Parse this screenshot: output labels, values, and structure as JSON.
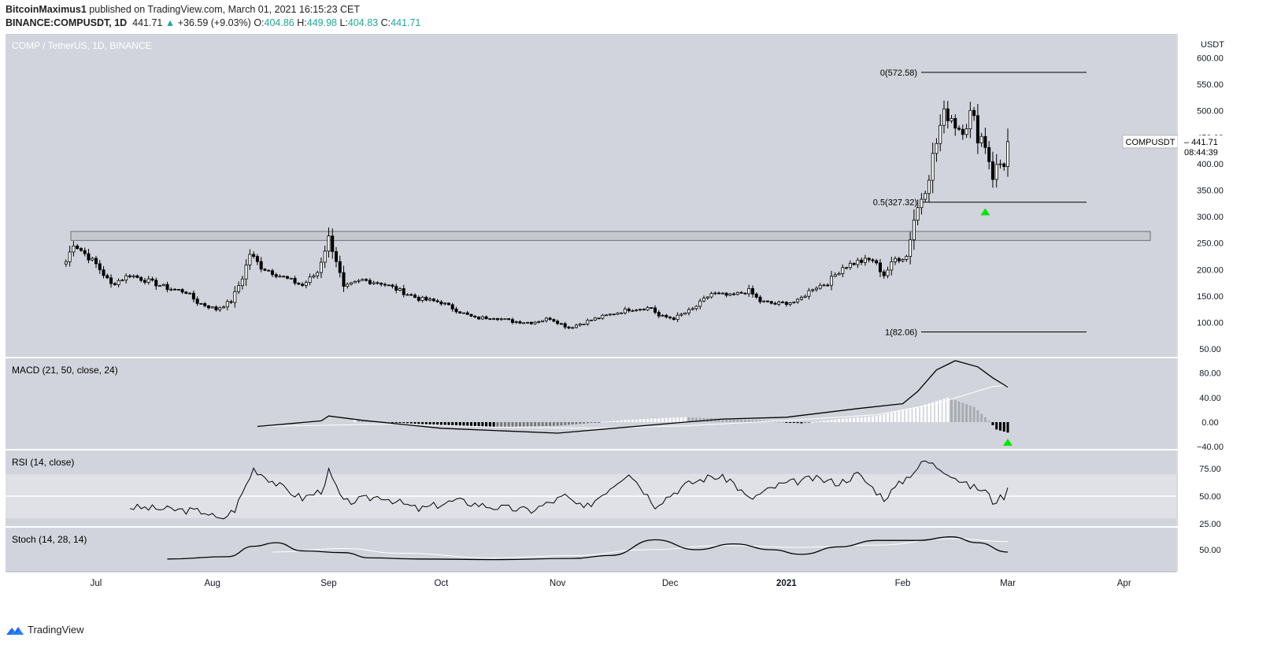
{
  "header": {
    "author": "BitcoinMaximus1",
    "published": "published on TradingView.com, March 01, 2021 16:15:23 CET",
    "symbol": "BINANCE:COMPUSDT, 1D",
    "last": "441.71",
    "change": "+36.59 (+9.03%)",
    "o_label": "O:",
    "o": "404.86",
    "h_label": "H:",
    "h": "449.98",
    "l_label": "L:",
    "l": "404.83",
    "c_label": "C:",
    "c": "441.71"
  },
  "footer": {
    "brand": "TradingView"
  },
  "colors": {
    "pane_bg": "#d1d4dc",
    "candle": "#000000",
    "line": "#000000",
    "rsi_band": "#dfe1e7",
    "signal_white": "#ffffff",
    "marker_green": "#00e600"
  },
  "chart_data": {
    "type": "candlestick",
    "title": "COMP / TetherUS, 1D, BINANCE",
    "currency": "USDT",
    "price_label": {
      "name": "COMPUSDT",
      "value": "441.71",
      "countdown": "08:44:39"
    },
    "x_ticks": [
      "Jul",
      "Aug",
      "Sep",
      "Oct",
      "Nov",
      "Dec",
      "2021",
      "Feb",
      "Mar",
      "Apr"
    ],
    "y_ticks": [
      600,
      550,
      500,
      450,
      400,
      350,
      300,
      250,
      200,
      150,
      100,
      50
    ],
    "y_tick_labels": [
      "600.00",
      "550.00",
      "500.00",
      "450.00",
      "400.00",
      "350.00",
      "300.00",
      "250.00",
      "200.00",
      "150.00",
      "100.00",
      "50.00"
    ],
    "resistance_zone": [
      255,
      272
    ],
    "fib_levels": [
      {
        "label": "0(572.58)",
        "value": 572.58
      },
      {
        "label": "0.5(327.32)",
        "value": 327.32
      },
      {
        "label": "1(82.06)",
        "value": 82.06
      }
    ],
    "close_anchors": [
      [
        "2020-06-23",
        215
      ],
      [
        "2020-06-25",
        250
      ],
      [
        "2020-07-01",
        210
      ],
      [
        "2020-07-05",
        172
      ],
      [
        "2020-07-10",
        190
      ],
      [
        "2020-07-15",
        178
      ],
      [
        "2020-07-20",
        165
      ],
      [
        "2020-07-25",
        158
      ],
      [
        "2020-07-28",
        138
      ],
      [
        "2020-08-02",
        125
      ],
      [
        "2020-08-06",
        140
      ],
      [
        "2020-08-09",
        185
      ],
      [
        "2020-08-11",
        230
      ],
      [
        "2020-08-14",
        205
      ],
      [
        "2020-08-20",
        185
      ],
      [
        "2020-08-25",
        170
      ],
      [
        "2020-08-29",
        195
      ],
      [
        "2020-09-01",
        260
      ],
      [
        "2020-09-03",
        218
      ],
      [
        "2020-09-05",
        165
      ],
      [
        "2020-09-10",
        180
      ],
      [
        "2020-09-15",
        175
      ],
      [
        "2020-09-20",
        160
      ],
      [
        "2020-09-25",
        145
      ],
      [
        "2020-10-01",
        138
      ],
      [
        "2020-10-06",
        120
      ],
      [
        "2020-10-10",
        108
      ],
      [
        "2020-10-15",
        110
      ],
      [
        "2020-10-20",
        102
      ],
      [
        "2020-10-25",
        100
      ],
      [
        "2020-10-30",
        108
      ],
      [
        "2020-11-04",
        90
      ],
      [
        "2020-11-10",
        105
      ],
      [
        "2020-11-15",
        115
      ],
      [
        "2020-11-20",
        125
      ],
      [
        "2020-11-26",
        128
      ],
      [
        "2020-11-28",
        112
      ],
      [
        "2020-12-02",
        108
      ],
      [
        "2020-12-07",
        125
      ],
      [
        "2020-12-12",
        155
      ],
      [
        "2020-12-17",
        150
      ],
      [
        "2020-12-22",
        160
      ],
      [
        "2020-12-25",
        140
      ],
      [
        "2020-12-29",
        135
      ],
      [
        "2021-01-04",
        140
      ],
      [
        "2021-01-08",
        165
      ],
      [
        "2021-01-12",
        175
      ],
      [
        "2021-01-16",
        205
      ],
      [
        "2021-01-20",
        215
      ],
      [
        "2021-01-24",
        218
      ],
      [
        "2021-01-27",
        190
      ],
      [
        "2021-01-30",
        220
      ],
      [
        "2021-02-02",
        225
      ],
      [
        "2021-02-04",
        295
      ],
      [
        "2021-02-07",
        360
      ],
      [
        "2021-02-09",
        410
      ],
      [
        "2021-02-11",
        470
      ],
      [
        "2021-02-13",
        500
      ],
      [
        "2021-02-16",
        470
      ],
      [
        "2021-02-19",
        490
      ],
      [
        "2021-02-21",
        460
      ],
      [
        "2021-02-23",
        440
      ],
      [
        "2021-02-25",
        380
      ],
      [
        "2021-02-27",
        400
      ],
      [
        "2021-02-28",
        405
      ],
      [
        "2021-03-01",
        441.71
      ]
    ],
    "macd": {
      "label": "MACD (21, 50, close, 24)",
      "y_ticks": [
        80,
        40,
        0,
        -40
      ],
      "y_tick_labels": [
        "80.00",
        "40.00",
        "0.00",
        "−40.00"
      ],
      "macd_line": [
        [
          "2020-08-13",
          -7
        ],
        [
          "2020-08-30",
          2
        ],
        [
          "2020-09-01",
          10
        ],
        [
          "2020-09-10",
          3
        ],
        [
          "2020-10-01",
          -10
        ],
        [
          "2020-11-01",
          -18
        ],
        [
          "2020-12-01",
          -2
        ],
        [
          "2020-12-15",
          5
        ],
        [
          "2021-01-01",
          8
        ],
        [
          "2021-01-20",
          22
        ],
        [
          "2021-02-01",
          30
        ],
        [
          "2021-02-05",
          50
        ],
        [
          "2021-02-10",
          85
        ],
        [
          "2021-02-15",
          100
        ],
        [
          "2021-02-21",
          90
        ],
        [
          "2021-02-25",
          72
        ],
        [
          "2021-03-01",
          57
        ]
      ],
      "signal_line": [
        [
          "2020-08-13",
          -7
        ],
        [
          "2020-09-20",
          -3
        ],
        [
          "2020-10-15",
          -8
        ],
        [
          "2020-11-10",
          -10
        ],
        [
          "2020-12-05",
          -6
        ],
        [
          "2021-01-05",
          4
        ],
        [
          "2021-01-25",
          12
        ],
        [
          "2021-02-10",
          30
        ],
        [
          "2021-02-25",
          58
        ],
        [
          "2021-03-01",
          60
        ]
      ],
      "histogram": [
        [
          "2020-09-08",
          4
        ],
        [
          "2020-09-25",
          -3
        ],
        [
          "2020-10-15",
          -8
        ],
        [
          "2020-11-01",
          -6
        ],
        [
          "2020-11-20",
          4
        ],
        [
          "2020-12-05",
          8
        ],
        [
          "2020-12-25",
          3
        ],
        [
          "2021-01-05",
          -2
        ],
        [
          "2021-01-15",
          5
        ],
        [
          "2021-01-25",
          10
        ],
        [
          "2021-02-05",
          25
        ],
        [
          "2021-02-13",
          40
        ],
        [
          "2021-02-20",
          25
        ],
        [
          "2021-02-24",
          2
        ],
        [
          "2021-02-26",
          -12
        ],
        [
          "2021-03-01",
          -17
        ]
      ]
    },
    "rsi": {
      "label": "RSI (14, close)",
      "y_ticks": [
        75,
        50,
        25
      ],
      "y_tick_labels": [
        "75.00",
        "50.00",
        "25.00"
      ],
      "band": [
        30,
        70
      ],
      "values": [
        [
          "2020-07-10",
          40
        ],
        [
          "2020-07-20",
          38
        ],
        [
          "2020-07-30",
          36
        ],
        [
          "2020-08-03",
          28
        ],
        [
          "2020-08-07",
          38
        ],
        [
          "2020-08-12",
          75
        ],
        [
          "2020-08-20",
          57
        ],
        [
          "2020-08-25",
          48
        ],
        [
          "2020-08-30",
          55
        ],
        [
          "2020-09-01",
          72
        ],
        [
          "2020-09-05",
          44
        ],
        [
          "2020-09-15",
          50
        ],
        [
          "2020-09-25",
          38
        ],
        [
          "2020-10-05",
          46
        ],
        [
          "2020-10-15",
          40
        ],
        [
          "2020-10-25",
          37
        ],
        [
          "2020-11-03",
          50
        ],
        [
          "2020-11-08",
          38
        ],
        [
          "2020-11-20",
          72
        ],
        [
          "2020-11-27",
          42
        ],
        [
          "2020-12-05",
          60
        ],
        [
          "2020-12-12",
          68
        ],
        [
          "2020-12-17",
          65
        ],
        [
          "2020-12-22",
          47
        ],
        [
          "2020-12-30",
          60
        ],
        [
          "2021-01-08",
          66
        ],
        [
          "2021-01-15",
          62
        ],
        [
          "2021-01-20",
          70
        ],
        [
          "2021-01-27",
          48
        ],
        [
          "2021-02-03",
          70
        ],
        [
          "2021-02-07",
          82
        ],
        [
          "2021-02-13",
          72
        ],
        [
          "2021-02-18",
          60
        ],
        [
          "2021-02-23",
          55
        ],
        [
          "2021-02-25",
          45
        ],
        [
          "2021-02-28",
          50
        ],
        [
          "2021-03-01",
          56
        ]
      ]
    },
    "stoch": {
      "label": "Stoch (14, 28, 14)",
      "y_ticks": [
        50
      ],
      "y_tick_labels": [
        "50.00"
      ],
      "k": [
        [
          "2020-07-20",
          34
        ],
        [
          "2020-08-05",
          38
        ],
        [
          "2020-08-12",
          56
        ],
        [
          "2020-08-18",
          62
        ],
        [
          "2020-08-25",
          48
        ],
        [
          "2020-09-05",
          45
        ],
        [
          "2020-09-12",
          36
        ],
        [
          "2020-09-25",
          34
        ],
        [
          "2020-10-15",
          33
        ],
        [
          "2020-11-05",
          35
        ],
        [
          "2020-11-15",
          40
        ],
        [
          "2020-11-27",
          67
        ],
        [
          "2020-12-08",
          50
        ],
        [
          "2020-12-18",
          60
        ],
        [
          "2020-12-28",
          50
        ],
        [
          "2021-01-05",
          42
        ],
        [
          "2021-01-15",
          55
        ],
        [
          "2021-01-25",
          66
        ],
        [
          "2021-02-05",
          66
        ],
        [
          "2021-02-14",
          72
        ],
        [
          "2021-02-21",
          62
        ],
        [
          "2021-03-01",
          46
        ]
      ],
      "d": [
        [
          "2020-08-17",
          46
        ],
        [
          "2020-09-05",
          52
        ],
        [
          "2020-09-20",
          44
        ],
        [
          "2020-10-15",
          36
        ],
        [
          "2020-11-05",
          40
        ],
        [
          "2020-11-25",
          50
        ],
        [
          "2020-12-15",
          57
        ],
        [
          "2021-01-05",
          54
        ],
        [
          "2021-01-25",
          58
        ],
        [
          "2021-02-14",
          69
        ],
        [
          "2021-03-01",
          64
        ]
      ]
    },
    "markers": [
      {
        "pane": "price",
        "date": "2021-02-23",
        "value": 310
      },
      {
        "pane": "macd",
        "date": "2021-03-01",
        "value": -32
      }
    ]
  }
}
